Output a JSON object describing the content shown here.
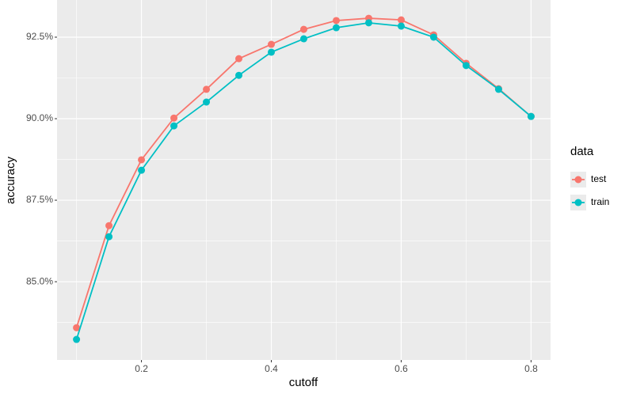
{
  "chart_data": {
    "type": "line",
    "x": [
      0.1,
      0.15,
      0.2,
      0.25,
      0.3,
      0.35,
      0.4,
      0.45,
      0.5,
      0.55,
      0.6,
      0.65,
      0.7,
      0.75,
      0.8
    ],
    "series": [
      {
        "name": "test",
        "color": "#F8766D",
        "values": [
          83.59,
          86.72,
          88.74,
          90.02,
          90.9,
          91.84,
          92.28,
          92.74,
          93.01,
          93.08,
          93.03,
          92.57,
          91.7,
          90.92,
          90.07
        ]
      },
      {
        "name": "train",
        "color": "#00BFC4",
        "values": [
          83.23,
          86.38,
          88.42,
          89.78,
          90.51,
          91.33,
          92.04,
          92.45,
          92.79,
          92.94,
          92.84,
          92.5,
          91.63,
          90.9,
          90.07
        ]
      }
    ],
    "xlabel": "cutoff",
    "ylabel": "accuracy",
    "legend_title": "data",
    "xlim": [
      0.07,
      0.83
    ],
    "ylim": [
      82.6,
      93.64
    ],
    "xticks": [
      0.2,
      0.4,
      0.6,
      0.8
    ],
    "yticks": [
      {
        "value": 85,
        "label": "85.0%"
      },
      {
        "value": 87.5,
        "label": "87.5%"
      },
      {
        "value": 90,
        "label": "90.0%"
      },
      {
        "value": 92.5,
        "label": "92.5%"
      }
    ],
    "grid": true,
    "legend": "right"
  }
}
